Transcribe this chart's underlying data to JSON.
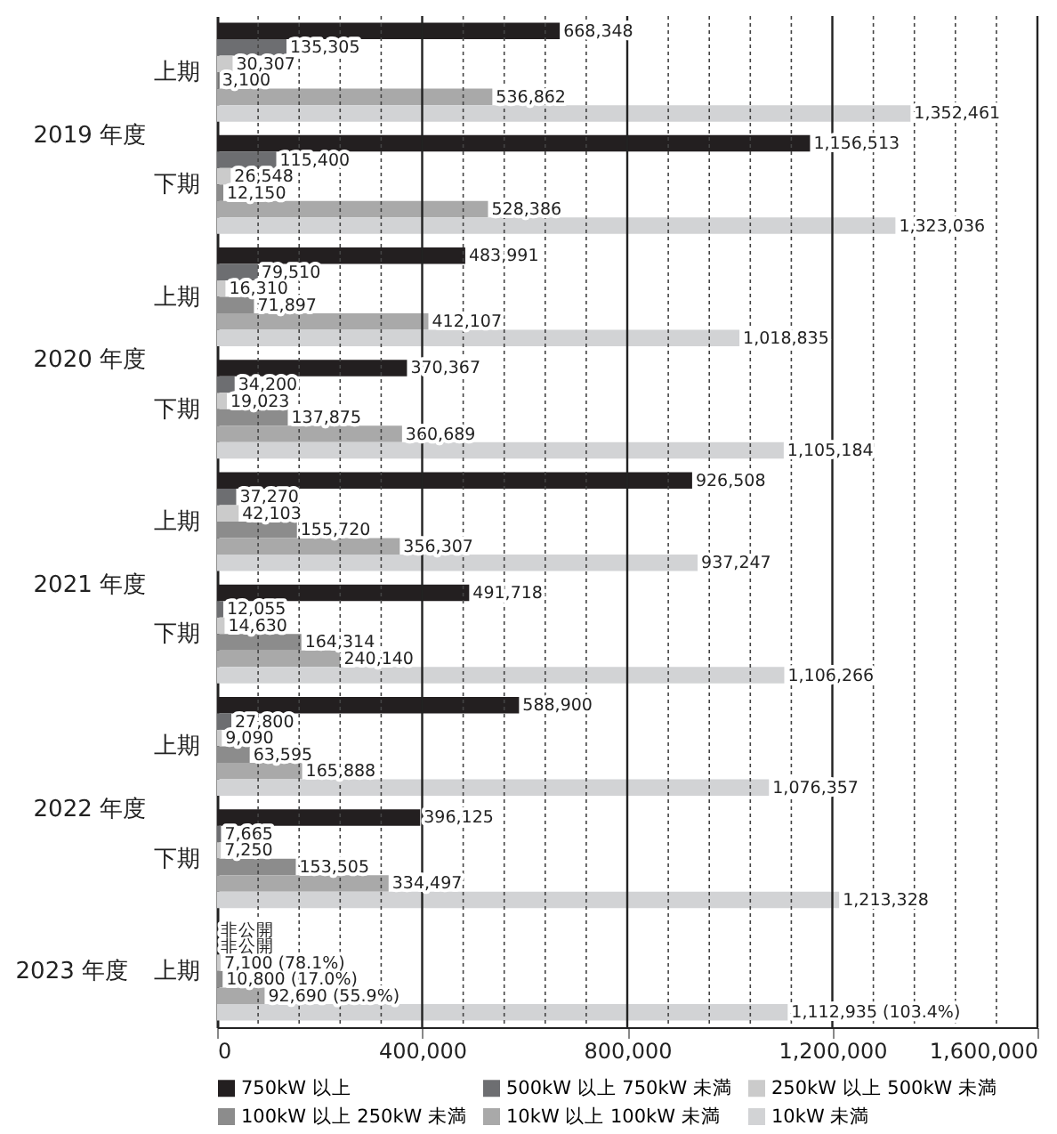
{
  "chart_data": {
    "type": "bar",
    "orientation": "horizontal",
    "categories": [
      "上期",
      "下期",
      "上期",
      "下期",
      "上期",
      "下期",
      "上期",
      "下期",
      "上期"
    ],
    "annotations": [
      "2019 年度",
      "2020 年度",
      "2021 年度",
      "2022 年度",
      "2023 年度"
    ],
    "series": [
      {
        "name": "750kW 以上",
        "color": "#231f20",
        "values": [
          668348,
          1156513,
          483991,
          370367,
          926508,
          491718,
          588900,
          396125,
          null
        ],
        "value_labels": [
          "668,348",
          "1,156,513",
          "483,991",
          "370,367",
          "926,508",
          "491,718",
          "588,900",
          "396,125",
          "非公開"
        ]
      },
      {
        "name": "500kW 以上 750kW 未満",
        "color": "#6d6e71",
        "values": [
          135305,
          115400,
          79510,
          34200,
          37270,
          12055,
          27800,
          7665,
          null
        ],
        "value_labels": [
          "135,305",
          "115,400",
          "79,510",
          "34,200",
          "37,270",
          "12,055",
          "27,800",
          "7,665",
          "非公開"
        ]
      },
      {
        "name": "250kW 以上 500kW 未満",
        "color": "#cbcbcb",
        "values": [
          30307,
          26548,
          16310,
          19023,
          42103,
          14630,
          9090,
          7250,
          7100
        ],
        "value_labels": [
          "30,307",
          "26,548",
          "16,310",
          "19,023",
          "42,103",
          "14,630",
          "9,090",
          "7,250",
          "7,100 (78.1%)"
        ]
      },
      {
        "name": "100kW 以上 250kW 未満",
        "color": "#8c8c8c",
        "values": [
          3100,
          12150,
          71897,
          137875,
          155720,
          164314,
          63595,
          153505,
          10800
        ],
        "value_labels": [
          "3,100",
          "12,150",
          "71,897",
          "137,875",
          "155,720",
          "164,314",
          "63,595",
          "153,505",
          "10,800 (17.0%)"
        ]
      },
      {
        "name": "10kW 以上 100kW 未満",
        "color": "#a9a9a9",
        "values": [
          536862,
          528386,
          412107,
          360689,
          356307,
          240140,
          165888,
          334497,
          92690
        ],
        "value_labels": [
          "536,862",
          "528,386",
          "412,107",
          "360,689",
          "356,307",
          "240,140",
          "165,888",
          "334,497",
          "92,690 (55.9%)"
        ]
      },
      {
        "name": "10kW 未満",
        "color": "#d2d3d5",
        "values": [
          1352461,
          1323036,
          1018835,
          1105184,
          937247,
          1106266,
          1076357,
          1213328,
          1112935
        ],
        "value_labels": [
          "1,352,461",
          "1,323,036",
          "1,018,835",
          "1,105,184",
          "937,247",
          "1,106,266",
          "1,076,357",
          "1,213,328",
          "1,112,935 (103.4%)"
        ]
      }
    ],
    "xlim": [
      0,
      1600000
    ],
    "xticks": [
      0,
      {
        "value": 80000,
        "label": null
      },
      {
        "value": 160000,
        "label": null
      },
      {
        "value": 240000,
        "label": null
      },
      {
        "value": 320000,
        "label": null
      },
      {
        "value": 400000,
        "label": "400,000"
      },
      {
        "value": 480000,
        "label": null
      },
      {
        "value": 560000,
        "label": null
      },
      {
        "value": 640000,
        "label": null
      },
      {
        "value": 720000,
        "label": null
      },
      {
        "value": 800000,
        "label": "800,000"
      },
      {
        "value": 880000,
        "label": null
      },
      {
        "value": 960000,
        "label": null
      },
      {
        "value": 1040000,
        "label": null
      },
      {
        "value": 1120000,
        "label": null
      },
      {
        "value": 1200000,
        "label": "1,200,000"
      },
      {
        "value": 1280000,
        "label": null
      },
      {
        "value": 1360000,
        "label": null
      },
      {
        "value": 1440000,
        "label": null
      },
      {
        "value": 1520000,
        "label": null
      },
      {
        "value": 1600000,
        "label": "1,600,000"
      }
    ],
    "grid": "x",
    "legend": "bottom"
  }
}
